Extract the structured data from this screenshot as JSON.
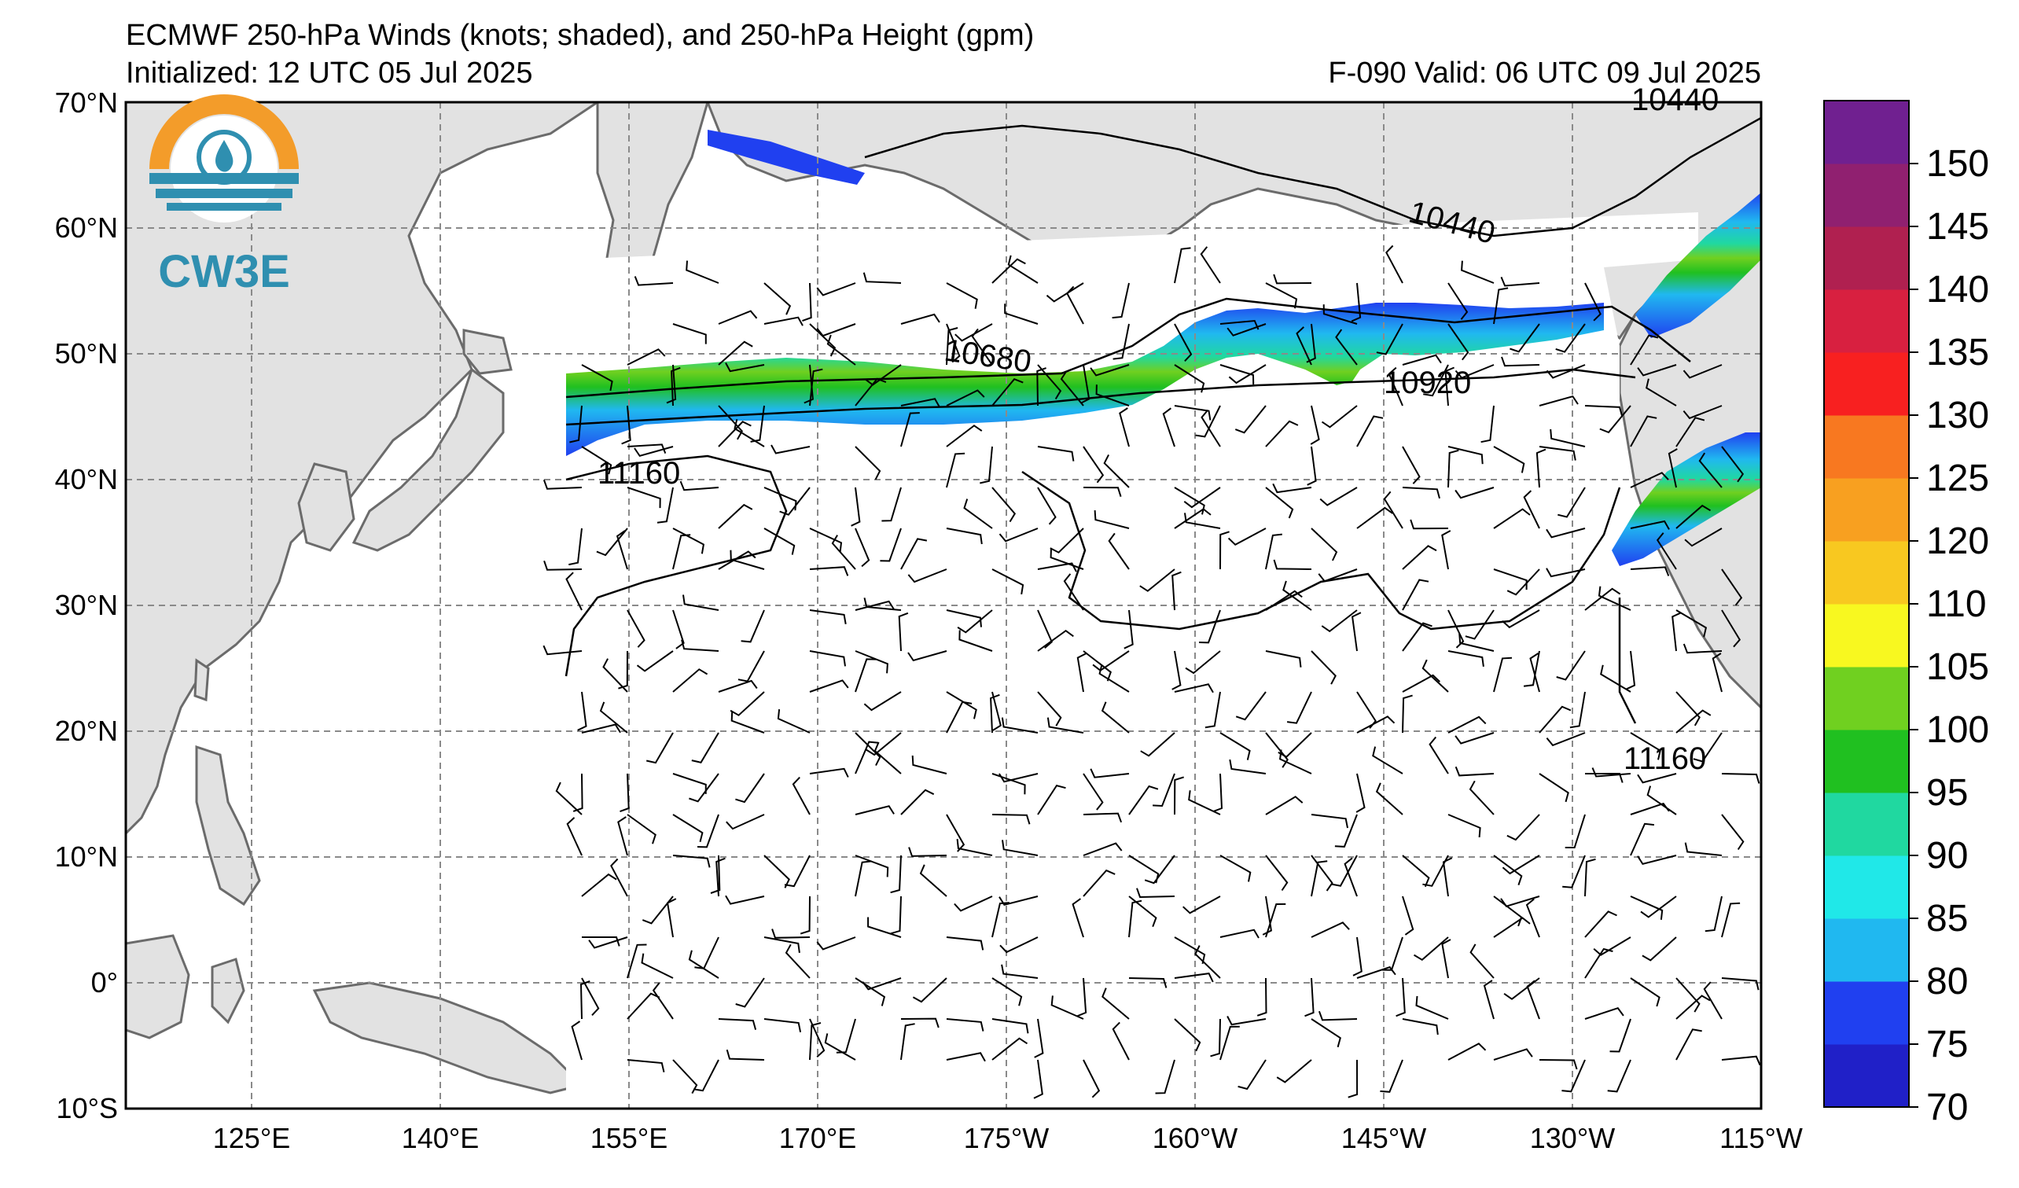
{
  "title": "ECMWF 250-hPa Winds (knots; shaded), and 250-hPa Height (gpm)",
  "initialized": "Initialized: 12 UTC 05 Jul 2025",
  "valid": "F-090  Valid: 06 UTC 09 Jul 2025",
  "logo_text": "CW3E",
  "lat_labels": [
    "70°N",
    "60°N",
    "50°N",
    "40°N",
    "30°N",
    "20°N",
    "10°N",
    "0°",
    "10°S"
  ],
  "lon_labels": [
    "125°E",
    "140°E",
    "155°E",
    "170°E",
    "175°W",
    "160°W",
    "145°W",
    "130°W",
    "115°W"
  ],
  "contour_labels": [
    "10440",
    "10440",
    "10680",
    "10920",
    "11160",
    "11160"
  ],
  "colorbar": {
    "ticks": [
      "70",
      "75",
      "80",
      "85",
      "90",
      "95",
      "100",
      "105",
      "110",
      "120",
      "125",
      "130",
      "135",
      "140",
      "145",
      "150"
    ],
    "colors": [
      "#2020c8",
      "#2040f0",
      "#20b8f0",
      "#20e8e8",
      "#20d8a0",
      "#20c020",
      "#70d020",
      "#f8f820",
      "#f8c820",
      "#f8a020",
      "#f87820",
      "#f82020",
      "#d82040",
      "#b02050",
      "#902070",
      "#702090"
    ]
  },
  "colors": {
    "land": "#e2e2e2",
    "coast": "#6b6b6b",
    "grid": "#8a8a8a",
    "logo_orange": "#f39c2a",
    "logo_teal": "#2f8fb0"
  }
}
